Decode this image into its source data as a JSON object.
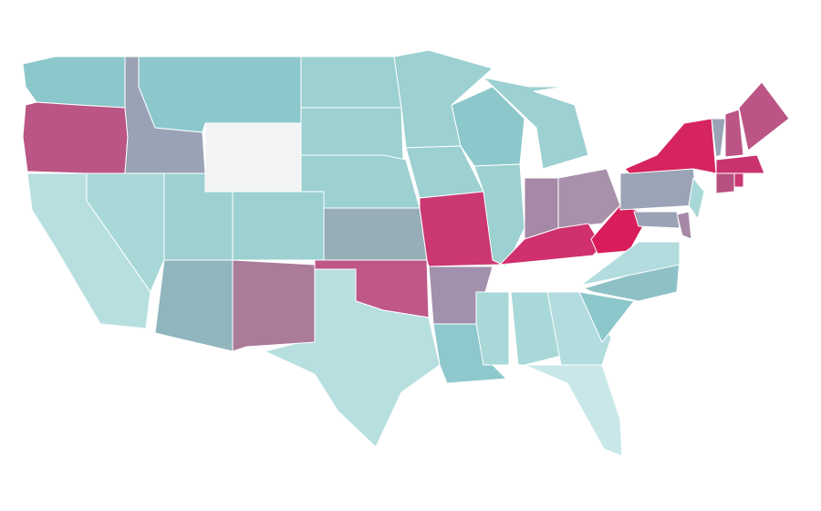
{
  "map": {
    "background": "#ffffff",
    "border_color": "#ffffff",
    "regions": [
      {
        "color": "#8cc8cb"
      },
      {
        "color": "#bb5585"
      },
      {
        "color": "#9aa3b5"
      },
      {
        "color": "#8cc8cb"
      },
      {
        "color": "#f2f3f4"
      },
      {
        "color": "#9dd0d1"
      },
      {
        "color": "#9dd0d1"
      },
      {
        "color": "#9dd0d1"
      },
      {
        "color": "#9dd0d1"
      },
      {
        "color": "#97adb8"
      },
      {
        "color": "#9dd0d1"
      },
      {
        "color": "#9dd0d1"
      },
      {
        "color": "#cb3871"
      },
      {
        "color": "#8cc8cb"
      },
      {
        "color": "#9dd0d1"
      },
      {
        "color": "#9dd0d1"
      },
      {
        "color": "#a689a6"
      },
      {
        "color": "#a891aa"
      },
      {
        "color": "#d0306d"
      },
      {
        "color": "#d81d5a"
      },
      {
        "color": "#9ba3b6"
      },
      {
        "color": "#a291ad"
      },
      {
        "color": "#bf5789"
      },
      {
        "color": "#b8dfe0"
      },
      {
        "color": "#ab7b9a"
      },
      {
        "color": "#90b5bd"
      },
      {
        "color": "#9dd0d1"
      },
      {
        "color": "#a8d8d8"
      },
      {
        "color": "#b8dfe0"
      },
      {
        "color": "#8ec8cc"
      },
      {
        "color": "#a8d8d8"
      },
      {
        "color": "#a8d8d8"
      },
      {
        "color": "#b2dcdd"
      },
      {
        "color": "#c9e7e9"
      },
      {
        "color": "#8cc8cb"
      },
      {
        "color": "#8ec1c6"
      },
      {
        "color": "#b2dcdd"
      },
      {
        "color": "#9aa3b5"
      },
      {
        "color": "#d6245f"
      },
      {
        "color": "#a8d8d8"
      },
      {
        "color": "#a689a6"
      },
      {
        "color": "#9aa3b5"
      },
      {
        "color": "#bb5585"
      },
      {
        "color": "#bb5585"
      },
      {
        "color": "#c93470"
      },
      {
        "color": "#b65080"
      },
      {
        "color": "#cb3871"
      }
    ]
  }
}
